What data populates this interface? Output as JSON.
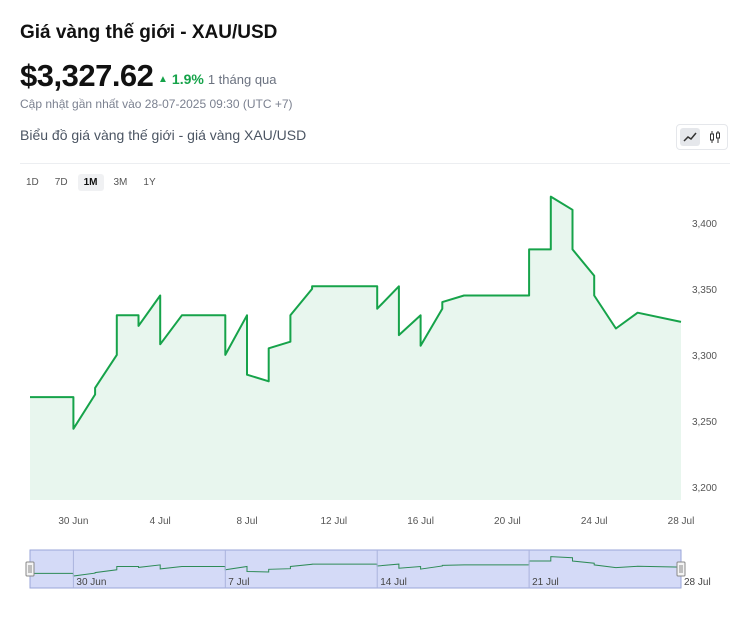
{
  "header": {
    "title": "Giá vàng thế giới - XAU/USD",
    "price": "$3,327.62",
    "change_pct": "1.9%",
    "change_period": "1 tháng qua",
    "updated": "Cập nhật gần nhất vào 28-07-2025 09:30 (UTC +7)",
    "chart_title": "Biểu đồ giá vàng thế giới - giá vàng XAU/USD",
    "change_color": "#16a34a"
  },
  "view_toggle": {
    "line_icon": "line-chart-icon",
    "candle_icon": "candlestick-icon",
    "active": "line"
  },
  "ranges": [
    "1D",
    "7D",
    "1M",
    "3M",
    "1Y"
  ],
  "active_range": "1M",
  "chart_data": {
    "type": "area",
    "title": "",
    "xlabel": "",
    "ylabel": "",
    "x_ticks": [
      "30 Jun",
      "4 Jul",
      "8 Jul",
      "12 Jul",
      "16 Jul",
      "20 Jul",
      "24 Jul",
      "28 Jul"
    ],
    "y_ticks": [
      "3,200",
      "3,250",
      "3,300",
      "3,350",
      "3,400"
    ],
    "ylim": [
      3190,
      3425
    ],
    "xlim": [
      "2025-06-28",
      "2025-07-28"
    ],
    "grid": false,
    "line_color": "#16a34a",
    "fill_color": "#e8f6ee",
    "series": [
      {
        "x": [
          "2025-06-28",
          "2025-06-29",
          "2025-06-30",
          "2025-06-30",
          "2025-07-01",
          "2025-07-01",
          "2025-07-02",
          "2025-07-02",
          "2025-07-03",
          "2025-07-03",
          "2025-07-04",
          "2025-07-04",
          "2025-07-05",
          "2025-07-07",
          "2025-07-07",
          "2025-07-08",
          "2025-07-08",
          "2025-07-09",
          "2025-07-09",
          "2025-07-10",
          "2025-07-10",
          "2025-07-11",
          "2025-07-11",
          "2025-07-12",
          "2025-07-14",
          "2025-07-14",
          "2025-07-15",
          "2025-07-15",
          "2025-07-16",
          "2025-07-16",
          "2025-07-17",
          "2025-07-17",
          "2025-07-18",
          "2025-07-19",
          "2025-07-21",
          "2025-07-21",
          "2025-07-22",
          "2025-07-22",
          "2025-07-23",
          "2025-07-23",
          "2025-07-24",
          "2025-07-24",
          "2025-07-25",
          "2025-07-26",
          "2025-07-28"
        ],
        "y": [
          3268,
          3268,
          3268,
          3244,
          3270,
          3275,
          3300,
          3330,
          3330,
          3322,
          3345,
          3308,
          3330,
          3330,
          3300,
          3330,
          3285,
          3280,
          3305,
          3310,
          3330,
          3350,
          3352,
          3352,
          3352,
          3335,
          3352,
          3315,
          3330,
          3307,
          3335,
          3340,
          3345,
          3345,
          3345,
          3380,
          3380,
          3420,
          3410,
          3380,
          3360,
          3345,
          3320,
          3332,
          3325
        ]
      }
    ],
    "navigator": {
      "x_ticks": [
        "30 Jun",
        "7 Jul",
        "14 Jul",
        "21 Jul",
        "28 Jul"
      ]
    }
  }
}
